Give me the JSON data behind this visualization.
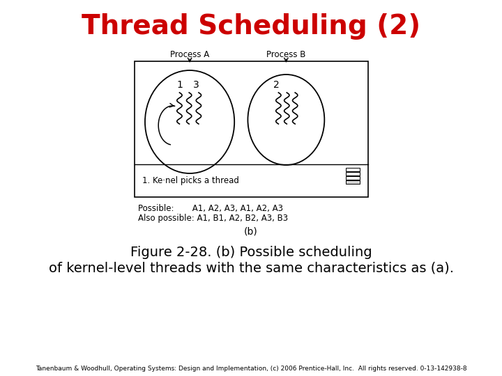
{
  "title": "Thread Scheduling (2)",
  "title_color": "#cc0000",
  "title_fontsize": 28,
  "title_fontweight": "bold",
  "bg_color": "#ffffff",
  "diagram_label_b": "(b)",
  "caption_line1": "Figure 2-28. (b) Possible scheduling",
  "caption_line2": "of kernel-level threads with the same characteristics as (a).",
  "caption_fontsize": 14,
  "footnote": "Tanenbaum & Woodhull, Operating Systems: Design and Implementation, (c) 2006 Prentice-Hall, Inc.  All rights reserved. 0-13-142938-8",
  "footnote_fontsize": 6.5,
  "process_a_label": "Process A",
  "process_b_label": "Process B",
  "thread_label_1": "1",
  "thread_label_3": "3",
  "thread_label_2": "2",
  "kernel_text": "1. Ke·nel picks a thread",
  "possible_text": "Possible:       A1, A2, A3, A1, A2, A3",
  "also_possible_text": "Also possible: A1, B1, A2, B2, A3, B3"
}
